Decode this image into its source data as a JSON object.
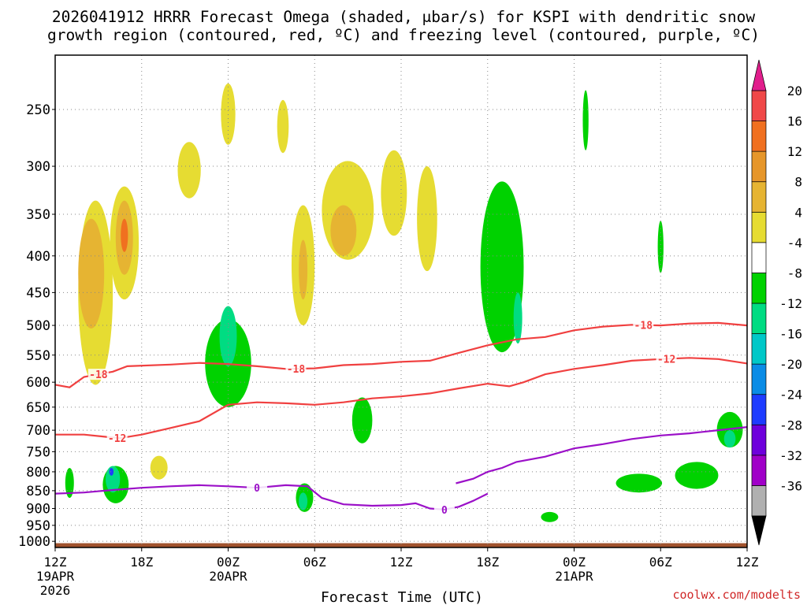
{
  "chart_data": {
    "type": "heatmap",
    "title_line1": "2026041912 HRRR Forecast Omega (shaded, μbar/s) for KSPI with dendritic snow",
    "title_line2": "growth region (contoured, red, ºC) and freezing level (contoured, purple, ºC)",
    "xlabel": "Forecast Time (UTC)",
    "credit": "coolwx.com/modelts",
    "x_ticks": [
      {
        "hour": 0,
        "label": "12Z",
        "sub": "19APR",
        "sub2": "2026"
      },
      {
        "hour": 6,
        "label": "18Z",
        "sub": "",
        "sub2": ""
      },
      {
        "hour": 12,
        "label": "00Z",
        "sub": "20APR",
        "sub2": ""
      },
      {
        "hour": 18,
        "label": "06Z",
        "sub": "",
        "sub2": ""
      },
      {
        "hour": 24,
        "label": "12Z",
        "sub": "",
        "sub2": ""
      },
      {
        "hour": 30,
        "label": "18Z",
        "sub": "",
        "sub2": ""
      },
      {
        "hour": 36,
        "label": "00Z",
        "sub": "21APR",
        "sub2": ""
      },
      {
        "hour": 42,
        "label": "06Z",
        "sub": "",
        "sub2": ""
      },
      {
        "hour": 48,
        "label": "12Z",
        "sub": "",
        "sub2": ""
      }
    ],
    "xlim": [
      0,
      48
    ],
    "y_levels": [
      250,
      300,
      350,
      400,
      450,
      500,
      550,
      600,
      650,
      700,
      750,
      800,
      850,
      900,
      950,
      1000
    ],
    "ylim": [
      210,
      1020
    ],
    "colorbar": {
      "colors": [
        "#b0b0b0",
        "#a000c8",
        "#6e00dc",
        "#1e3cff",
        "#0a8ce6",
        "#00c8c8",
        "#00dc82",
        "#00d200",
        "#ffffff",
        "#e6dc32",
        "#e6b432",
        "#e6962a",
        "#f07020",
        "#f04848"
      ],
      "labels": [
        "-36",
        "-32",
        "-28",
        "-24",
        "-20",
        "-16",
        "-12",
        "-8",
        "-4",
        "4",
        "8",
        "12",
        "16",
        "20"
      ],
      "min_color": "#000000",
      "max_color": "#e11e8c"
    },
    "omega_regions": [
      {
        "color": "#e6dc32",
        "hour": 2.8,
        "p": 470,
        "dh": 1.2,
        "dp": 270
      },
      {
        "color": "#e6b432",
        "hour": 2.5,
        "p": 430,
        "dh": 0.9,
        "dp": 150
      },
      {
        "color": "#e6dc32",
        "hour": 4.8,
        "p": 390,
        "dh": 1.0,
        "dp": 140
      },
      {
        "color": "#e6b432",
        "hour": 4.8,
        "p": 380,
        "dh": 0.6,
        "dp": 90
      },
      {
        "color": "#f07020",
        "hour": 4.8,
        "p": 375,
        "dh": 0.25,
        "dp": 40
      },
      {
        "color": "#e6dc32",
        "hour": 9.3,
        "p": 305,
        "dh": 0.8,
        "dp": 55
      },
      {
        "color": "#e6dc32",
        "hour": 12.0,
        "p": 255,
        "dh": 0.5,
        "dp": 50
      },
      {
        "color": "#e6dc32",
        "hour": 15.8,
        "p": 265,
        "dh": 0.4,
        "dp": 45
      },
      {
        "color": "#e6dc32",
        "hour": 17.2,
        "p": 420,
        "dh": 0.8,
        "dp": 160
      },
      {
        "color": "#e6b432",
        "hour": 17.2,
        "p": 420,
        "dh": 0.3,
        "dp": 80
      },
      {
        "color": "#e6dc32",
        "hour": 20.3,
        "p": 350,
        "dh": 1.8,
        "dp": 110
      },
      {
        "color": "#e6b432",
        "hour": 20.0,
        "p": 370,
        "dh": 0.9,
        "dp": 60
      },
      {
        "color": "#e6dc32",
        "hour": 23.5,
        "p": 330,
        "dh": 0.9,
        "dp": 90
      },
      {
        "color": "#e6dc32",
        "hour": 25.8,
        "p": 360,
        "dh": 0.7,
        "dp": 120
      },
      {
        "color": "#e6dc32",
        "hour": 7.2,
        "p": 790,
        "dh": 0.6,
        "dp": 60
      },
      {
        "color": "#00d200",
        "hour": 12.0,
        "p": 570,
        "dh": 1.6,
        "dp": 160
      },
      {
        "color": "#00dc82",
        "hour": 12.0,
        "p": 520,
        "dh": 0.6,
        "dp": 100
      },
      {
        "color": "#00d200",
        "hour": 21.3,
        "p": 680,
        "dh": 0.7,
        "dp": 100
      },
      {
        "color": "#00d200",
        "hour": 31.0,
        "p": 430,
        "dh": 1.5,
        "dp": 230
      },
      {
        "color": "#00dc82",
        "hour": 32.1,
        "p": 490,
        "dh": 0.3,
        "dp": 80
      },
      {
        "color": "#00d200",
        "hour": 36.8,
        "p": 260,
        "dh": 0.2,
        "dp": 50
      },
      {
        "color": "#00d200",
        "hour": 42.0,
        "p": 390,
        "dh": 0.2,
        "dp": 65
      },
      {
        "color": "#00d200",
        "hour": 4.2,
        "p": 835,
        "dh": 0.9,
        "dp": 100
      },
      {
        "color": "#00dc82",
        "hour": 4.0,
        "p": 820,
        "dh": 0.5,
        "dp": 70
      },
      {
        "color": "#1e3cff",
        "hour": 3.9,
        "p": 800,
        "dh": 0.15,
        "dp": 20
      },
      {
        "color": "#00d200",
        "hour": 1.0,
        "p": 830,
        "dh": 0.3,
        "dp": 80
      },
      {
        "color": "#00d200",
        "hour": 17.3,
        "p": 870,
        "dh": 0.6,
        "dp": 80
      },
      {
        "color": "#00dc82",
        "hour": 17.2,
        "p": 880,
        "dh": 0.3,
        "dp": 50
      },
      {
        "color": "#00d200",
        "hour": 34.3,
        "p": 925,
        "dh": 0.6,
        "dp": 30
      },
      {
        "color": "#00d200",
        "hour": 40.5,
        "p": 830,
        "dh": 1.6,
        "dp": 50
      },
      {
        "color": "#00d200",
        "hour": 44.5,
        "p": 810,
        "dh": 1.5,
        "dp": 70
      },
      {
        "color": "#00d200",
        "hour": 46.8,
        "p": 700,
        "dh": 0.9,
        "dp": 80
      },
      {
        "color": "#00dc82",
        "hour": 46.8,
        "p": 720,
        "dh": 0.4,
        "dp": 40
      }
    ],
    "series": [
      {
        "name": "-18",
        "label_hours": [
          3.0,
          16.7,
          40.8
        ],
        "color": "#f04040",
        "points": [
          [
            0,
            605
          ],
          [
            1,
            610
          ],
          [
            2,
            590
          ],
          [
            3,
            585
          ],
          [
            4,
            580
          ],
          [
            5,
            570
          ],
          [
            8,
            567
          ],
          [
            10,
            564
          ],
          [
            12,
            566
          ],
          [
            14,
            570
          ],
          [
            16,
            575
          ],
          [
            18,
            574
          ],
          [
            20,
            568
          ],
          [
            22,
            566
          ],
          [
            24,
            562
          ],
          [
            26,
            560
          ],
          [
            28,
            546
          ],
          [
            30,
            533
          ],
          [
            32,
            523
          ],
          [
            34,
            519
          ],
          [
            36,
            508
          ],
          [
            38,
            502
          ],
          [
            40,
            499
          ],
          [
            42,
            500
          ],
          [
            44,
            497
          ],
          [
            46,
            496
          ],
          [
            48,
            500
          ]
        ]
      },
      {
        "name": "-12",
        "label_hours": [
          4.3,
          42.4
        ],
        "color": "#f04040",
        "points": [
          [
            0,
            710
          ],
          [
            2,
            710
          ],
          [
            3.5,
            715
          ],
          [
            4.5,
            718
          ],
          [
            6,
            710
          ],
          [
            8,
            695
          ],
          [
            10,
            680
          ],
          [
            12,
            645
          ],
          [
            14,
            640
          ],
          [
            16,
            642
          ],
          [
            18,
            645
          ],
          [
            20,
            640
          ],
          [
            22,
            632
          ],
          [
            24,
            628
          ],
          [
            26,
            622
          ],
          [
            28,
            612
          ],
          [
            30,
            603
          ],
          [
            31.5,
            608
          ],
          [
            32.5,
            600
          ],
          [
            34,
            585
          ],
          [
            36,
            575
          ],
          [
            38,
            568
          ],
          [
            40,
            560
          ],
          [
            42,
            557
          ],
          [
            44,
            555
          ],
          [
            46,
            557
          ],
          [
            48,
            565
          ]
        ]
      },
      {
        "name": "0",
        "label_hours": [
          14.0,
          27.0
        ],
        "color": "#9b10c8",
        "points": [
          [
            0,
            858
          ],
          [
            2,
            855
          ],
          [
            4,
            848
          ],
          [
            6,
            842
          ],
          [
            8,
            838
          ],
          [
            10,
            835
          ],
          [
            12,
            838
          ],
          [
            14,
            842
          ],
          [
            16,
            835
          ],
          [
            17.5,
            838
          ],
          [
            18.5,
            870
          ],
          [
            20,
            888
          ],
          [
            22,
            892
          ],
          [
            24,
            890
          ],
          [
            25,
            885
          ],
          [
            26,
            900
          ],
          [
            27,
            903
          ],
          [
            28,
            895
          ],
          [
            29,
            878
          ],
          [
            30,
            858
          ]
        ]
      },
      {
        "name": "",
        "label_hours": [],
        "color": "#9b10c8",
        "points": [
          [
            27.8,
            830
          ],
          [
            29,
            818
          ],
          [
            30,
            800
          ],
          [
            31,
            790
          ],
          [
            32,
            775
          ],
          [
            34,
            762
          ],
          [
            36,
            742
          ],
          [
            38,
            732
          ],
          [
            40,
            720
          ],
          [
            42,
            712
          ],
          [
            44,
            707
          ],
          [
            46,
            700
          ],
          [
            48,
            693
          ]
        ]
      }
    ]
  }
}
